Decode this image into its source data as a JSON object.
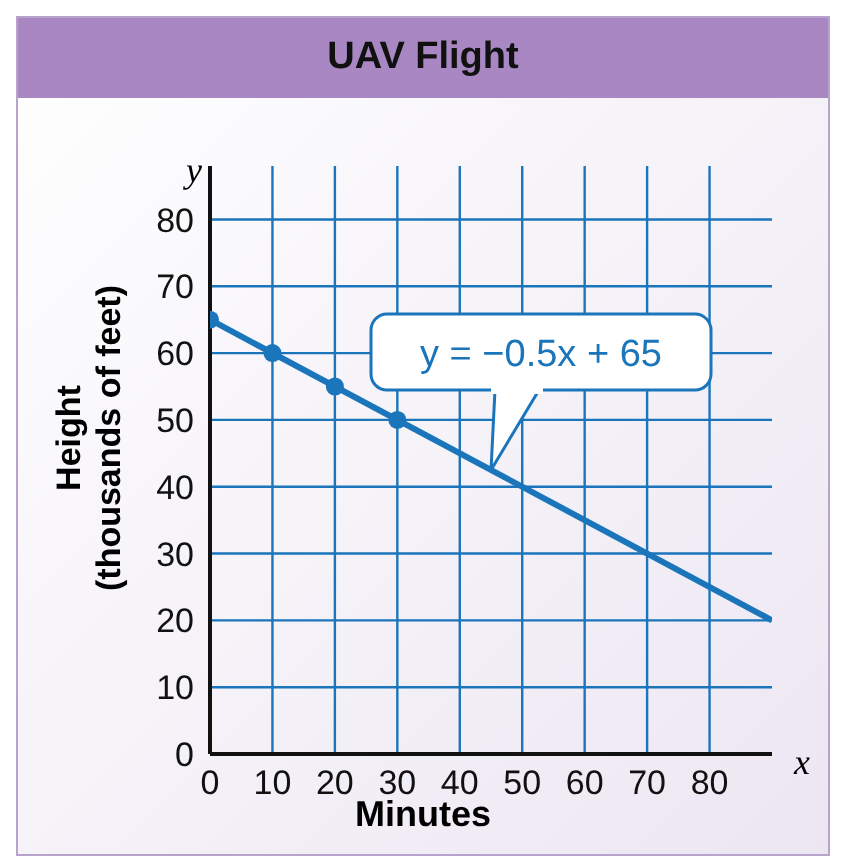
{
  "chart_data": {
    "type": "line",
    "title": "UAV Flight",
    "xlabel": "Minutes",
    "ylabel": "Height\n(thousands of feet)",
    "series": [
      {
        "type": "line",
        "color": "#1a75bb",
        "x": [
          0,
          90
        ],
        "values": [
          65,
          20
        ],
        "marker": "none"
      },
      {
        "type": "scatter",
        "color": "#1a75bb",
        "x": [
          0,
          10,
          20,
          30
        ],
        "values": [
          65,
          60,
          55,
          50
        ],
        "marker": "circle"
      }
    ],
    "xlim": [
      0,
      90
    ],
    "xticks": [
      0,
      10,
      20,
      30,
      40,
      50,
      60,
      70,
      80
    ],
    "ylim": [
      0,
      88
    ],
    "yticks": [
      0,
      10,
      20,
      30,
      40,
      50,
      60,
      70,
      80
    ],
    "grid": true,
    "annotations": [
      {
        "text": "y = −0.5x + 65",
        "x": 45,
        "y": 42.5
      },
      "y",
      "x"
    ]
  }
}
